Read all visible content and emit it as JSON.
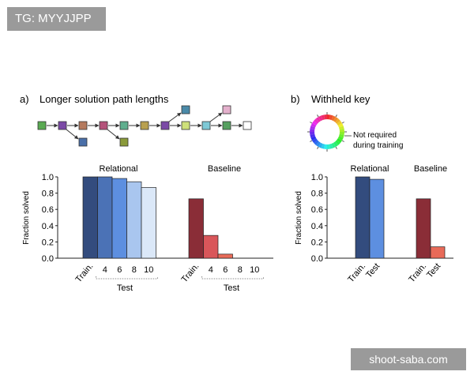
{
  "overlay": {
    "tag": "TG: MYYJJPP",
    "watermark": "shoot-saba.com"
  },
  "panel_a": {
    "label": "a)",
    "title": "Longer solution path lengths",
    "path_colors": [
      "#5aaa52",
      "#7b4aa6",
      "#b47a5e",
      "#b4527a",
      "#5fae8e",
      "#b8a050",
      "#7b4aa6",
      "#cee07a",
      "#7ec9d6",
      "#56a060",
      "#ffffff"
    ],
    "branch_colors": [
      "#4a6fa8",
      "#8a9a3a",
      "#4a8aa8",
      "#e4b0cc"
    ]
  },
  "panel_b": {
    "label": "b)",
    "title": "Withheld key",
    "note_lines": [
      "Not required",
      "during training"
    ]
  },
  "chart_data": [
    {
      "type": "bar",
      "ylabel": "Fraction solved",
      "ylim": [
        0,
        1
      ],
      "yticks": [
        "0.0",
        "0.2",
        "0.4",
        "0.6",
        "0.8",
        "1.0"
      ],
      "groups": [
        {
          "name": "Relational",
          "categories": [
            "Train.",
            "4",
            "6",
            "8",
            "10"
          ],
          "values": [
            1.0,
            1.0,
            0.98,
            0.94,
            0.87
          ],
          "colors": [
            "#334c7e",
            "#4b72b6",
            "#5d8fe0",
            "#a9c6ef",
            "#dbe8f8"
          ]
        },
        {
          "name": "Baseline",
          "categories": [
            "Train.",
            "4",
            "6",
            "8",
            "10"
          ],
          "values": [
            0.73,
            0.28,
            0.05,
            0.0,
            0.0
          ],
          "colors": [
            "#8a2d37",
            "#d9565a",
            "#e86a58",
            "#f08a78",
            "#f3a898"
          ]
        }
      ],
      "test_label": "Test"
    },
    {
      "type": "bar",
      "ylabel": "Fraction solved",
      "ylim": [
        0,
        1
      ],
      "yticks": [
        "0.0",
        "0.2",
        "0.4",
        "0.6",
        "0.8",
        "1.0"
      ],
      "groups": [
        {
          "name": "Relational",
          "categories": [
            "Train.",
            "Test"
          ],
          "values": [
            1.0,
            0.97
          ],
          "colors": [
            "#334c7e",
            "#5d8fe0"
          ]
        },
        {
          "name": "Baseline",
          "categories": [
            "Train.",
            "Test"
          ],
          "values": [
            0.73,
            0.14
          ],
          "colors": [
            "#8a2d37",
            "#e86a58"
          ]
        }
      ]
    }
  ]
}
